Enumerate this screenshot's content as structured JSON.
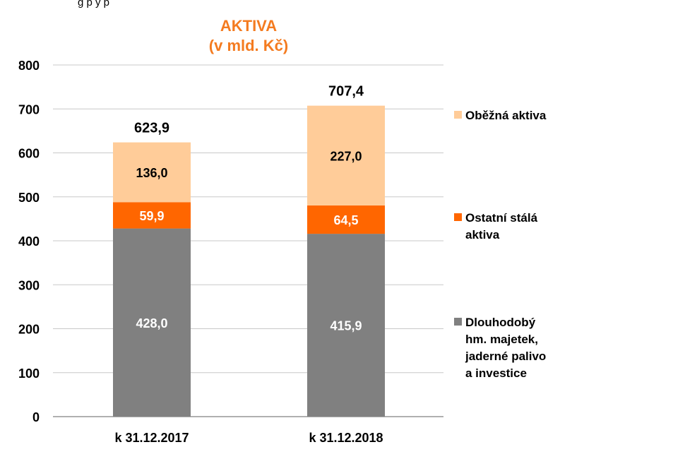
{
  "top_fragment": "g   p                                  y   p",
  "chart_data": {
    "type": "bar",
    "stacked": true,
    "title": "AKTIVA",
    "subtitle": "(v mld. Kč)",
    "title_color": "#F47B20",
    "categories": [
      "k 31.12.2017",
      "k 31.12.2018"
    ],
    "ylim": [
      0,
      800
    ],
    "yticks": [
      0,
      100,
      200,
      300,
      400,
      500,
      600,
      700,
      800
    ],
    "grid": true,
    "legend_position": "right",
    "series": [
      {
        "name": "Dlouhodobý hm. majetek, jaderné palivo a investice",
        "legend_lines": [
          "Dlouhodobý",
          "hm. majetek,",
          "jaderné palivo",
          "a investice"
        ],
        "values": [
          428.0,
          415.9
        ],
        "labels": [
          "428,0",
          "415,9"
        ],
        "color": "#808080",
        "label_color": "#ffffff"
      },
      {
        "name": "Ostatní stálá aktiva",
        "legend_lines": [
          "Ostatní stálá",
          "aktiva"
        ],
        "values": [
          59.9,
          64.5
        ],
        "labels": [
          "59,9",
          "64,5"
        ],
        "color": "#FF6600",
        "label_color": "#ffffff"
      },
      {
        "name": "Oběžná aktiva",
        "legend_lines": [
          "Oběžná aktiva"
        ],
        "values": [
          136.0,
          227.0
        ],
        "labels": [
          "136,0",
          "227,0"
        ],
        "color": "#FFCC99",
        "label_color": "#000000"
      }
    ],
    "totals": [
      623.9,
      707.4
    ],
    "total_labels": [
      "623,9",
      "707,4"
    ]
  }
}
